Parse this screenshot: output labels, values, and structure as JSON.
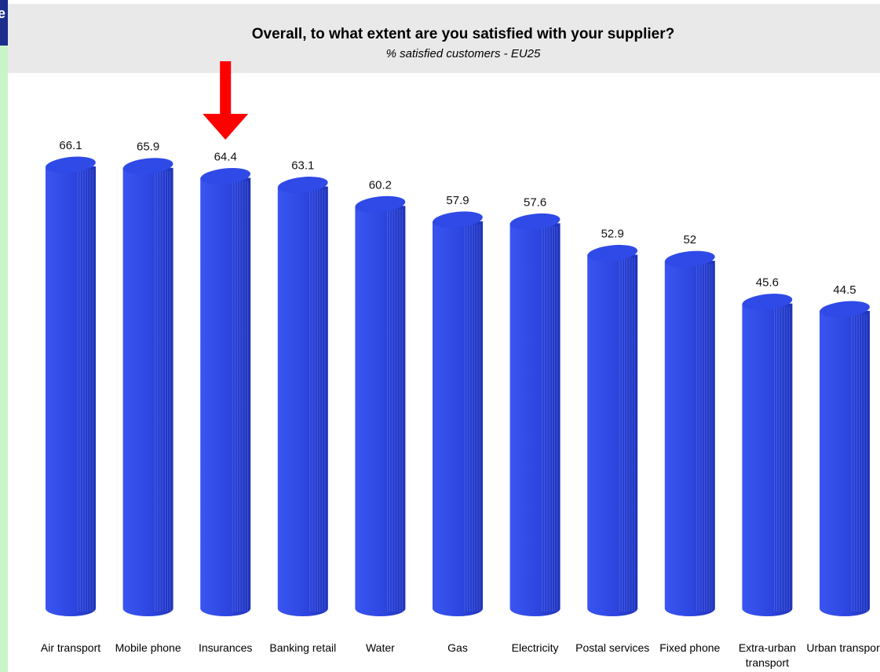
{
  "sidebar": {
    "tab_glyph": "e"
  },
  "chart_data": {
    "type": "bar",
    "title": "Overall, to what extent are you satisfied with your supplier?",
    "subtitle": "% satisfied customers - EU25",
    "categories": [
      "Air transport",
      "Mobile phone",
      "Insurances",
      "Banking retail",
      "Water",
      "Gas",
      "Electricity",
      "Postal services",
      "Fixed phone",
      "Extra-urban transport",
      "Urban transport"
    ],
    "values": [
      66.1,
      65.9,
      64.4,
      63.1,
      60.2,
      57.9,
      57.6,
      52.9,
      52,
      45.6,
      44.5
    ],
    "value_labels": [
      "66.1",
      "65.9",
      "64.4",
      "63.1",
      "60.2",
      "57.9",
      "57.6",
      "52.9",
      "52",
      "45.6",
      "44.5"
    ],
    "xlabel": "",
    "ylabel": "",
    "ylim": [
      0,
      70
    ],
    "grid": false,
    "bar_color": "#2d46e0",
    "highlight": {
      "category": "Insurances",
      "marker": "down-arrow",
      "color": "#ff0000"
    }
  }
}
